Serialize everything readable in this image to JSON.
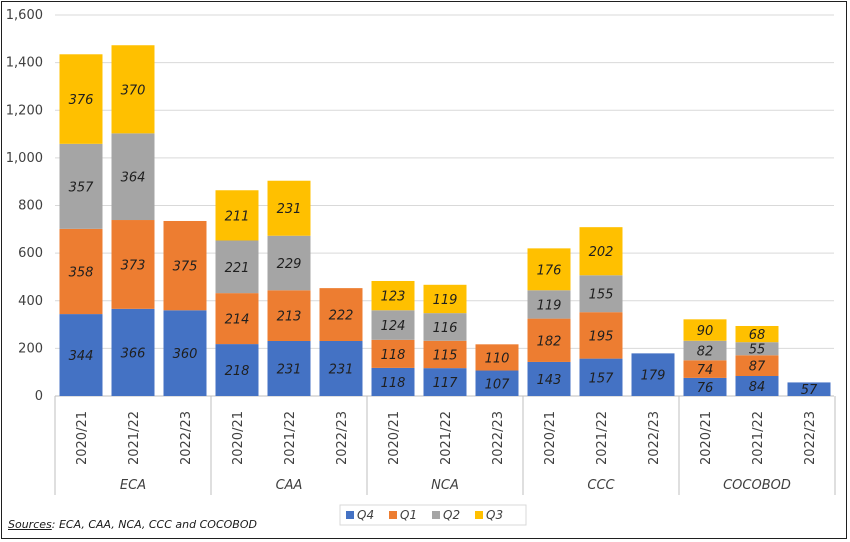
{
  "chart_data": {
    "type": "bar",
    "stacked": true,
    "y_ticks": [
      "0",
      "200",
      "400",
      "600",
      "800",
      "1,000",
      "1,200",
      "1,400",
      "1,600"
    ],
    "ylim": [
      0,
      1600
    ],
    "grid": true,
    "legend_position": "bottom",
    "groups": [
      {
        "name": "ECA",
        "categories": [
          "2020/21",
          "2021/22",
          "2022/23"
        ]
      },
      {
        "name": "CAA",
        "categories": [
          "2020/21",
          "2021/22",
          "2022/23"
        ]
      },
      {
        "name": "NCA",
        "categories": [
          "2020/21",
          "2021/22",
          "2022/23"
        ]
      },
      {
        "name": "CCC",
        "categories": [
          "2020/21",
          "2021/22",
          "2022/23"
        ]
      },
      {
        "name": "COCOBOD",
        "categories": [
          "2020/21",
          "2021/22",
          "2022/23"
        ]
      }
    ],
    "series": [
      {
        "name": "Q4",
        "color": "#4472C4",
        "label_color": "#1f1f1f",
        "values": [
          344,
          366,
          360,
          218,
          231,
          231,
          118,
          117,
          107,
          143,
          157,
          179,
          76,
          84,
          57
        ]
      },
      {
        "name": "Q1",
        "color": "#ED7D31",
        "label_color": "#1f1f1f",
        "values": [
          358,
          373,
          375,
          214,
          213,
          222,
          118,
          115,
          110,
          182,
          195,
          null,
          74,
          87,
          null
        ]
      },
      {
        "name": "Q2",
        "color": "#A5A5A5",
        "label_color": "#1f1f1f",
        "values": [
          357,
          364,
          null,
          221,
          229,
          null,
          124,
          116,
          null,
          119,
          155,
          null,
          82,
          55,
          null
        ]
      },
      {
        "name": "Q3",
        "color": "#FFC000",
        "label_color": "#1f1f1f",
        "values": [
          376,
          370,
          null,
          211,
          231,
          null,
          123,
          119,
          null,
          176,
          202,
          null,
          90,
          68,
          null
        ]
      }
    ]
  },
  "source_note": {
    "prefix": "Sources",
    "text": ": ECA, CAA, NCA, CCC and COCOBOD"
  }
}
